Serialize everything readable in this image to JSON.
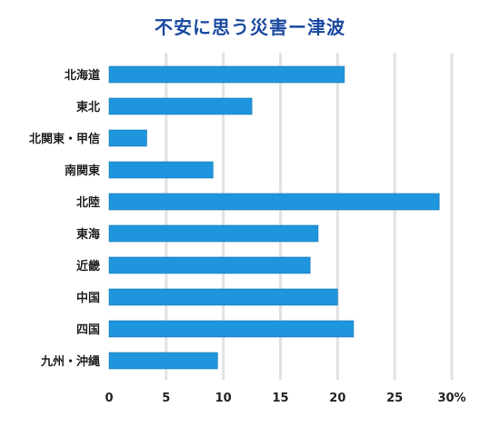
{
  "chart_data": {
    "type": "bar",
    "orientation": "horizontal",
    "title": "不安に思う災害ー津波",
    "categories": [
      "北海道",
      "東北",
      "北関東・甲信",
      "南関東",
      "北陸",
      "東海",
      "近畿",
      "中国",
      "四国",
      "九州・沖縄"
    ],
    "values": [
      20.6,
      12.5,
      3.3,
      9.1,
      28.9,
      18.3,
      17.6,
      20.0,
      21.4,
      9.5
    ],
    "xlim": [
      0,
      30
    ],
    "xticks": [
      0,
      5,
      10,
      15,
      20,
      25,
      30
    ],
    "xtick_labels": [
      "0",
      "5",
      "10",
      "15",
      "20",
      "25",
      "30%"
    ],
    "xlabel": "",
    "ylabel": "",
    "grid": "vertical",
    "bar_color": "#1e95dc",
    "title_color": "#1a4aa0"
  }
}
